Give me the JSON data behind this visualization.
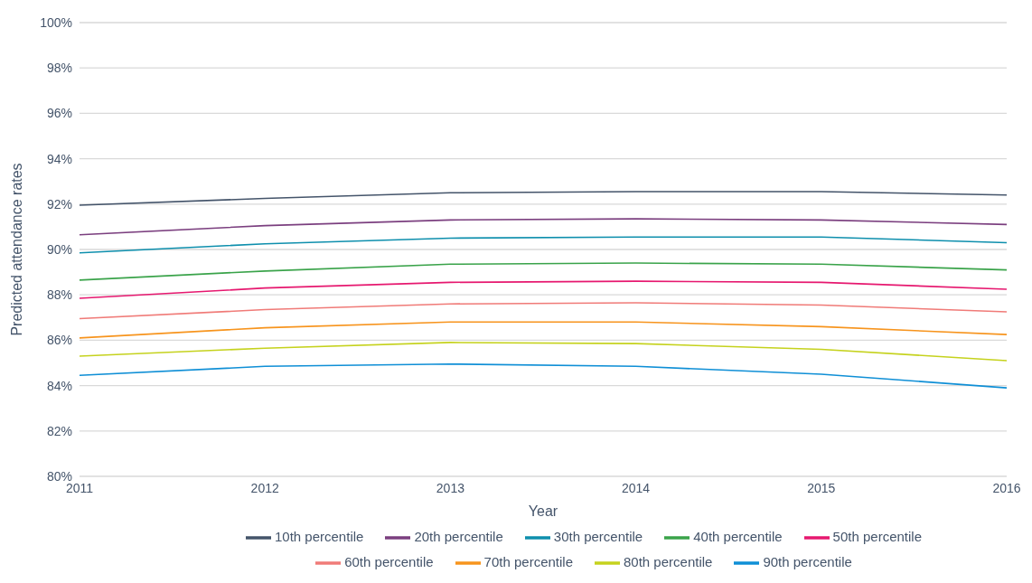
{
  "chart_data": {
    "type": "line",
    "xlabel": "Year",
    "ylabel": "Predicted attendance rates",
    "categories": [
      "2011",
      "2012",
      "2013",
      "2014",
      "2015",
      "2016"
    ],
    "ylim": [
      80,
      100
    ],
    "yticks": [
      {
        "value": 80,
        "label": "80%"
      },
      {
        "value": 82,
        "label": "82%"
      },
      {
        "value": 84,
        "label": "84%"
      },
      {
        "value": 86,
        "label": "86%"
      },
      {
        "value": 88,
        "label": "88%"
      },
      {
        "value": 90,
        "label": "90%"
      },
      {
        "value": 92,
        "label": "92%"
      },
      {
        "value": 94,
        "label": "94%"
      },
      {
        "value": 96,
        "label": "96%"
      },
      {
        "value": 98,
        "label": "98%"
      },
      {
        "value": 100,
        "label": "100%"
      }
    ],
    "grid": "y",
    "legend": "bottom",
    "marker": "none",
    "line_style": "solid",
    "series": [
      {
        "name": "10th percentile",
        "color": "#44546a",
        "values": [
          91.95,
          92.25,
          92.5,
          92.55,
          92.55,
          92.4
        ]
      },
      {
        "name": "20th percentile",
        "color": "#7b3f7f",
        "values": [
          90.65,
          91.05,
          91.3,
          91.35,
          91.3,
          91.1
        ]
      },
      {
        "name": "30th percentile",
        "color": "#0e8fad",
        "values": [
          89.85,
          90.25,
          90.5,
          90.55,
          90.55,
          90.3
        ]
      },
      {
        "name": "40th percentile",
        "color": "#3aa34a",
        "values": [
          88.65,
          89.05,
          89.35,
          89.4,
          89.35,
          89.1
        ]
      },
      {
        "name": "50th percentile",
        "color": "#e6186f",
        "values": [
          87.85,
          88.3,
          88.55,
          88.6,
          88.55,
          88.25
        ]
      },
      {
        "name": "60th percentile",
        "color": "#f07b78",
        "values": [
          86.95,
          87.35,
          87.6,
          87.65,
          87.55,
          87.25
        ]
      },
      {
        "name": "70th percentile",
        "color": "#f7941d",
        "values": [
          86.1,
          86.55,
          86.8,
          86.8,
          86.6,
          86.25
        ]
      },
      {
        "name": "80th percentile",
        "color": "#c5d21d",
        "values": [
          85.3,
          85.65,
          85.9,
          85.85,
          85.6,
          85.1
        ]
      },
      {
        "name": "90th percentile",
        "color": "#0f8fd6",
        "values": [
          84.45,
          84.85,
          84.95,
          84.85,
          84.5,
          83.9
        ]
      }
    ]
  }
}
